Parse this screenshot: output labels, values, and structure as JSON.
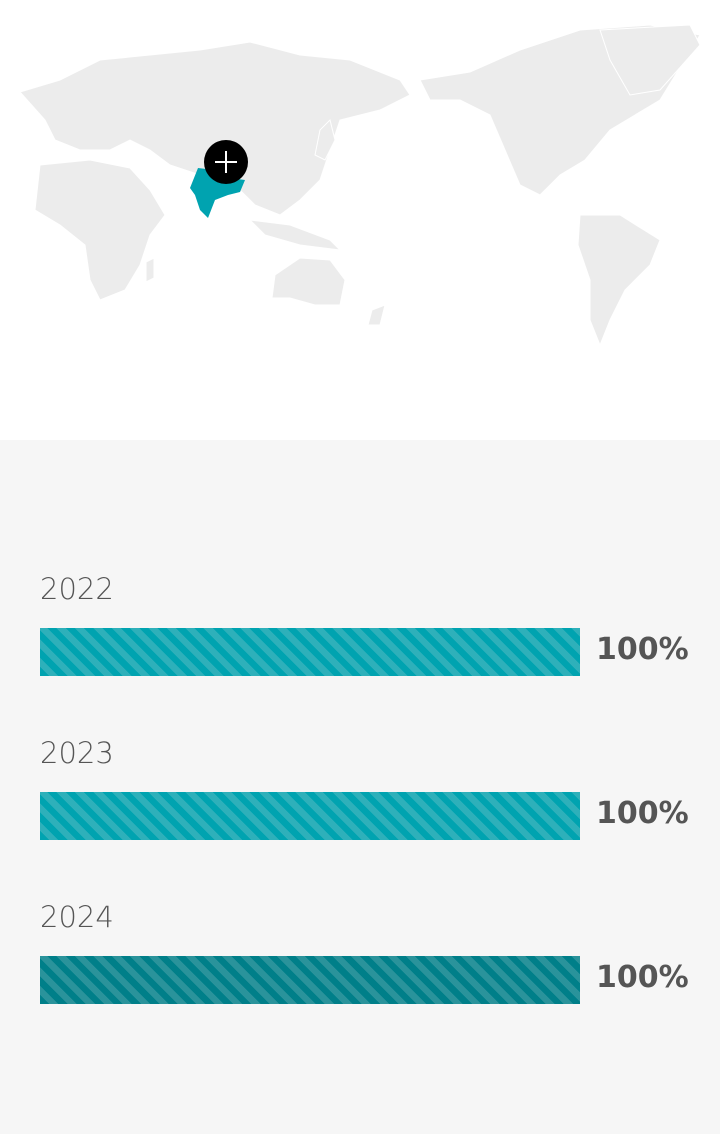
{
  "colors": {
    "highlight": "#00a3b0",
    "bar_light": [
      "#00a3b0",
      "#2eb0ba"
    ],
    "bar_dark": [
      "#007f89",
      "#2a939b"
    ],
    "land": "#ececec"
  },
  "map": {
    "highlighted_region": "India",
    "marker_icon": "plus-icon"
  },
  "chart_data": {
    "type": "bar",
    "orientation": "horizontal",
    "categories": [
      "2022",
      "2023",
      "2024"
    ],
    "values": [
      100,
      100,
      100
    ],
    "labels": [
      "100%",
      "100%",
      "100%"
    ],
    "xlim": [
      0,
      100
    ]
  }
}
